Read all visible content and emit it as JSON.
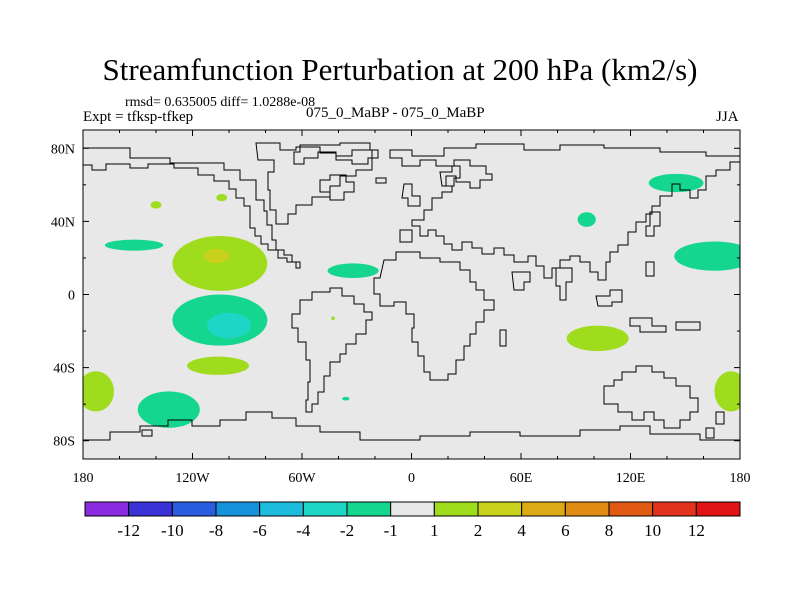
{
  "header": {
    "title": "Streamfunction Perturbation at 200 hPa (km2/s)",
    "stats": "rmsd= 0.635005 diff= 1.0288e-08",
    "expt": "Expt = tfksp-tfkep",
    "center_label": "075_0_MaBP - 075_0_MaBP",
    "season": "JJA"
  },
  "chart_data": {
    "type": "heatmap",
    "title": "Streamfunction Perturbation at 200 hPa (km2/s)",
    "x_axis": {
      "range": [
        -180,
        180
      ],
      "ticks": [
        {
          "value": -180,
          "label": "180"
        },
        {
          "value": -120,
          "label": "120W"
        },
        {
          "value": -60,
          "label": "60W"
        },
        {
          "value": 0,
          "label": "0"
        },
        {
          "value": 60,
          "label": "60E"
        },
        {
          "value": 120,
          "label": "120E"
        },
        {
          "value": 180,
          "label": "180"
        }
      ]
    },
    "y_axis": {
      "range": [
        -90,
        90
      ],
      "ticks": [
        {
          "value": 80,
          "label": "80N"
        },
        {
          "value": 40,
          "label": "40N"
        },
        {
          "value": 0,
          "label": "0"
        },
        {
          "value": -40,
          "label": "40S"
        },
        {
          "value": -80,
          "label": "80S"
        }
      ]
    },
    "background_color": "#e8e8e8",
    "colorbar": {
      "colors": [
        "#8b2be2",
        "#3a32d6",
        "#2a5de0",
        "#1493dc",
        "#1bbcdc",
        "#1fd6c6",
        "#15d68f",
        "#e8e8e8",
        "#a0dc1e",
        "#c8d21c",
        "#dcaa14",
        "#e08c12",
        "#e05a14",
        "#e0321c",
        "#e01414"
      ],
      "labels": [
        "-12",
        "-10",
        "-8",
        "-6",
        "-4",
        "-2",
        "-1",
        "1",
        "2",
        "4",
        "6",
        "8",
        "10",
        "12"
      ]
    },
    "features": [
      {
        "lon": -152,
        "lat": 27,
        "rlon": 16,
        "rlat": 3,
        "level": "-1",
        "color": "#15d68f"
      },
      {
        "lon": -140,
        "lat": 49,
        "rlon": 3,
        "rlat": 2,
        "level": "2",
        "color": "#a0dc1e"
      },
      {
        "lon": -104,
        "lat": 53,
        "rlon": 3,
        "rlat": 2,
        "level": "2",
        "color": "#a0dc1e"
      },
      {
        "lon": -105,
        "lat": 17,
        "rlon": 26,
        "rlat": 15,
        "level": "2",
        "color": "#a0dc1e"
      },
      {
        "lon": -107,
        "lat": 21,
        "rlon": 7,
        "rlat": 4,
        "level": "4",
        "color": "#c8d21c"
      },
      {
        "lon": -32,
        "lat": 13,
        "rlon": 14,
        "rlat": 4,
        "level": "-1",
        "color": "#15d68f"
      },
      {
        "lon": -105,
        "lat": -14,
        "rlon": 26,
        "rlat": 14,
        "level": "-1",
        "color": "#15d68f"
      },
      {
        "lon": -100,
        "lat": -17,
        "rlon": 12,
        "rlat": 7,
        "level": "-2",
        "color": "#1fd6c6"
      },
      {
        "lon": -106,
        "lat": -39,
        "rlon": 17,
        "rlat": 5,
        "level": "2",
        "color": "#a0dc1e"
      },
      {
        "lon": -173,
        "lat": -53,
        "rlon": 10,
        "rlat": 11,
        "level": "2",
        "color": "#a0dc1e"
      },
      {
        "lon": -133,
        "lat": -63,
        "rlon": 17,
        "rlat": 10,
        "level": "-1",
        "color": "#15d68f"
      },
      {
        "lon": -36,
        "lat": -57,
        "rlon": 2,
        "rlat": 1,
        "level": "-1",
        "color": "#15d68f"
      },
      {
        "lon": -43,
        "lat": -13,
        "rlon": 1,
        "rlat": 1,
        "level": "2",
        "color": "#a0dc1e"
      },
      {
        "lon": 96,
        "lat": 41,
        "rlon": 5,
        "rlat": 4,
        "level": "-1",
        "color": "#15d68f"
      },
      {
        "lon": 145,
        "lat": 61,
        "rlon": 15,
        "rlat": 5,
        "level": "-1",
        "color": "#15d68f"
      },
      {
        "lon": 166,
        "lat": 21,
        "rlon": 22,
        "rlat": 8,
        "level": "-1",
        "color": "#15d68f"
      },
      {
        "lon": 102,
        "lat": -24,
        "rlon": 17,
        "rlat": 7,
        "level": "2",
        "color": "#a0dc1e"
      },
      {
        "lon": 175,
        "lat": -53,
        "rlon": 9,
        "rlat": 11,
        "level": "2",
        "color": "#a0dc1e"
      }
    ]
  }
}
